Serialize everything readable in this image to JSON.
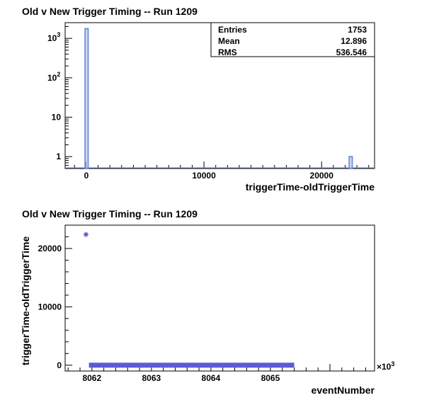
{
  "chart_data": [
    {
      "type": "bar",
      "title": "Old v New Trigger Timing -- Run 1209",
      "xlabel": "triggerTime-oldTriggerTime",
      "ylabel": "",
      "xlim": [
        -1800,
        24500
      ],
      "ylim": [
        0.5,
        2500
      ],
      "yscale": "log",
      "x_ticks": [
        "0",
        "10000",
        "20000"
      ],
      "y_ticks": [
        {
          "base": "10",
          "exp": "3"
        },
        {
          "base": "10",
          "exp": "2"
        },
        {
          "base": "10",
          "exp": ""
        },
        {
          "base": "1",
          "exp": ""
        }
      ],
      "bins": [
        {
          "x_low": -100,
          "x_high": 150,
          "count": 1752
        },
        {
          "x_low": 22350,
          "x_high": 22600,
          "count": 1
        }
      ],
      "stats": [
        {
          "label": "Entries",
          "value": "1753"
        },
        {
          "label": "Mean",
          "value": "12.896"
        },
        {
          "label": "RMS",
          "value": "536.546"
        }
      ],
      "legend_position": "top-right",
      "color": "#6f8fd9"
    },
    {
      "type": "scatter",
      "title": "Old v New Trigger Timing -- Run 1209",
      "xlabel": "eventNumber",
      "ylabel": "triggerTime-oldTriggerTime",
      "xlim": [
        8061.55,
        8066.75
      ],
      "ylim": [
        -1000,
        24000
      ],
      "x_multiplier": "×10",
      "x_multiplier_exp": "3",
      "x_ticks": [
        "8062",
        "8063",
        "8064",
        "8065"
      ],
      "y_ticks": [
        "0",
        "10000",
        "20000"
      ],
      "points": [
        {
          "x": 8061.9,
          "y": 22400
        }
      ],
      "band": {
        "x_start": 8061.95,
        "x_end": 8065.4,
        "y": 0
      },
      "color": "#5b5bd6"
    }
  ]
}
